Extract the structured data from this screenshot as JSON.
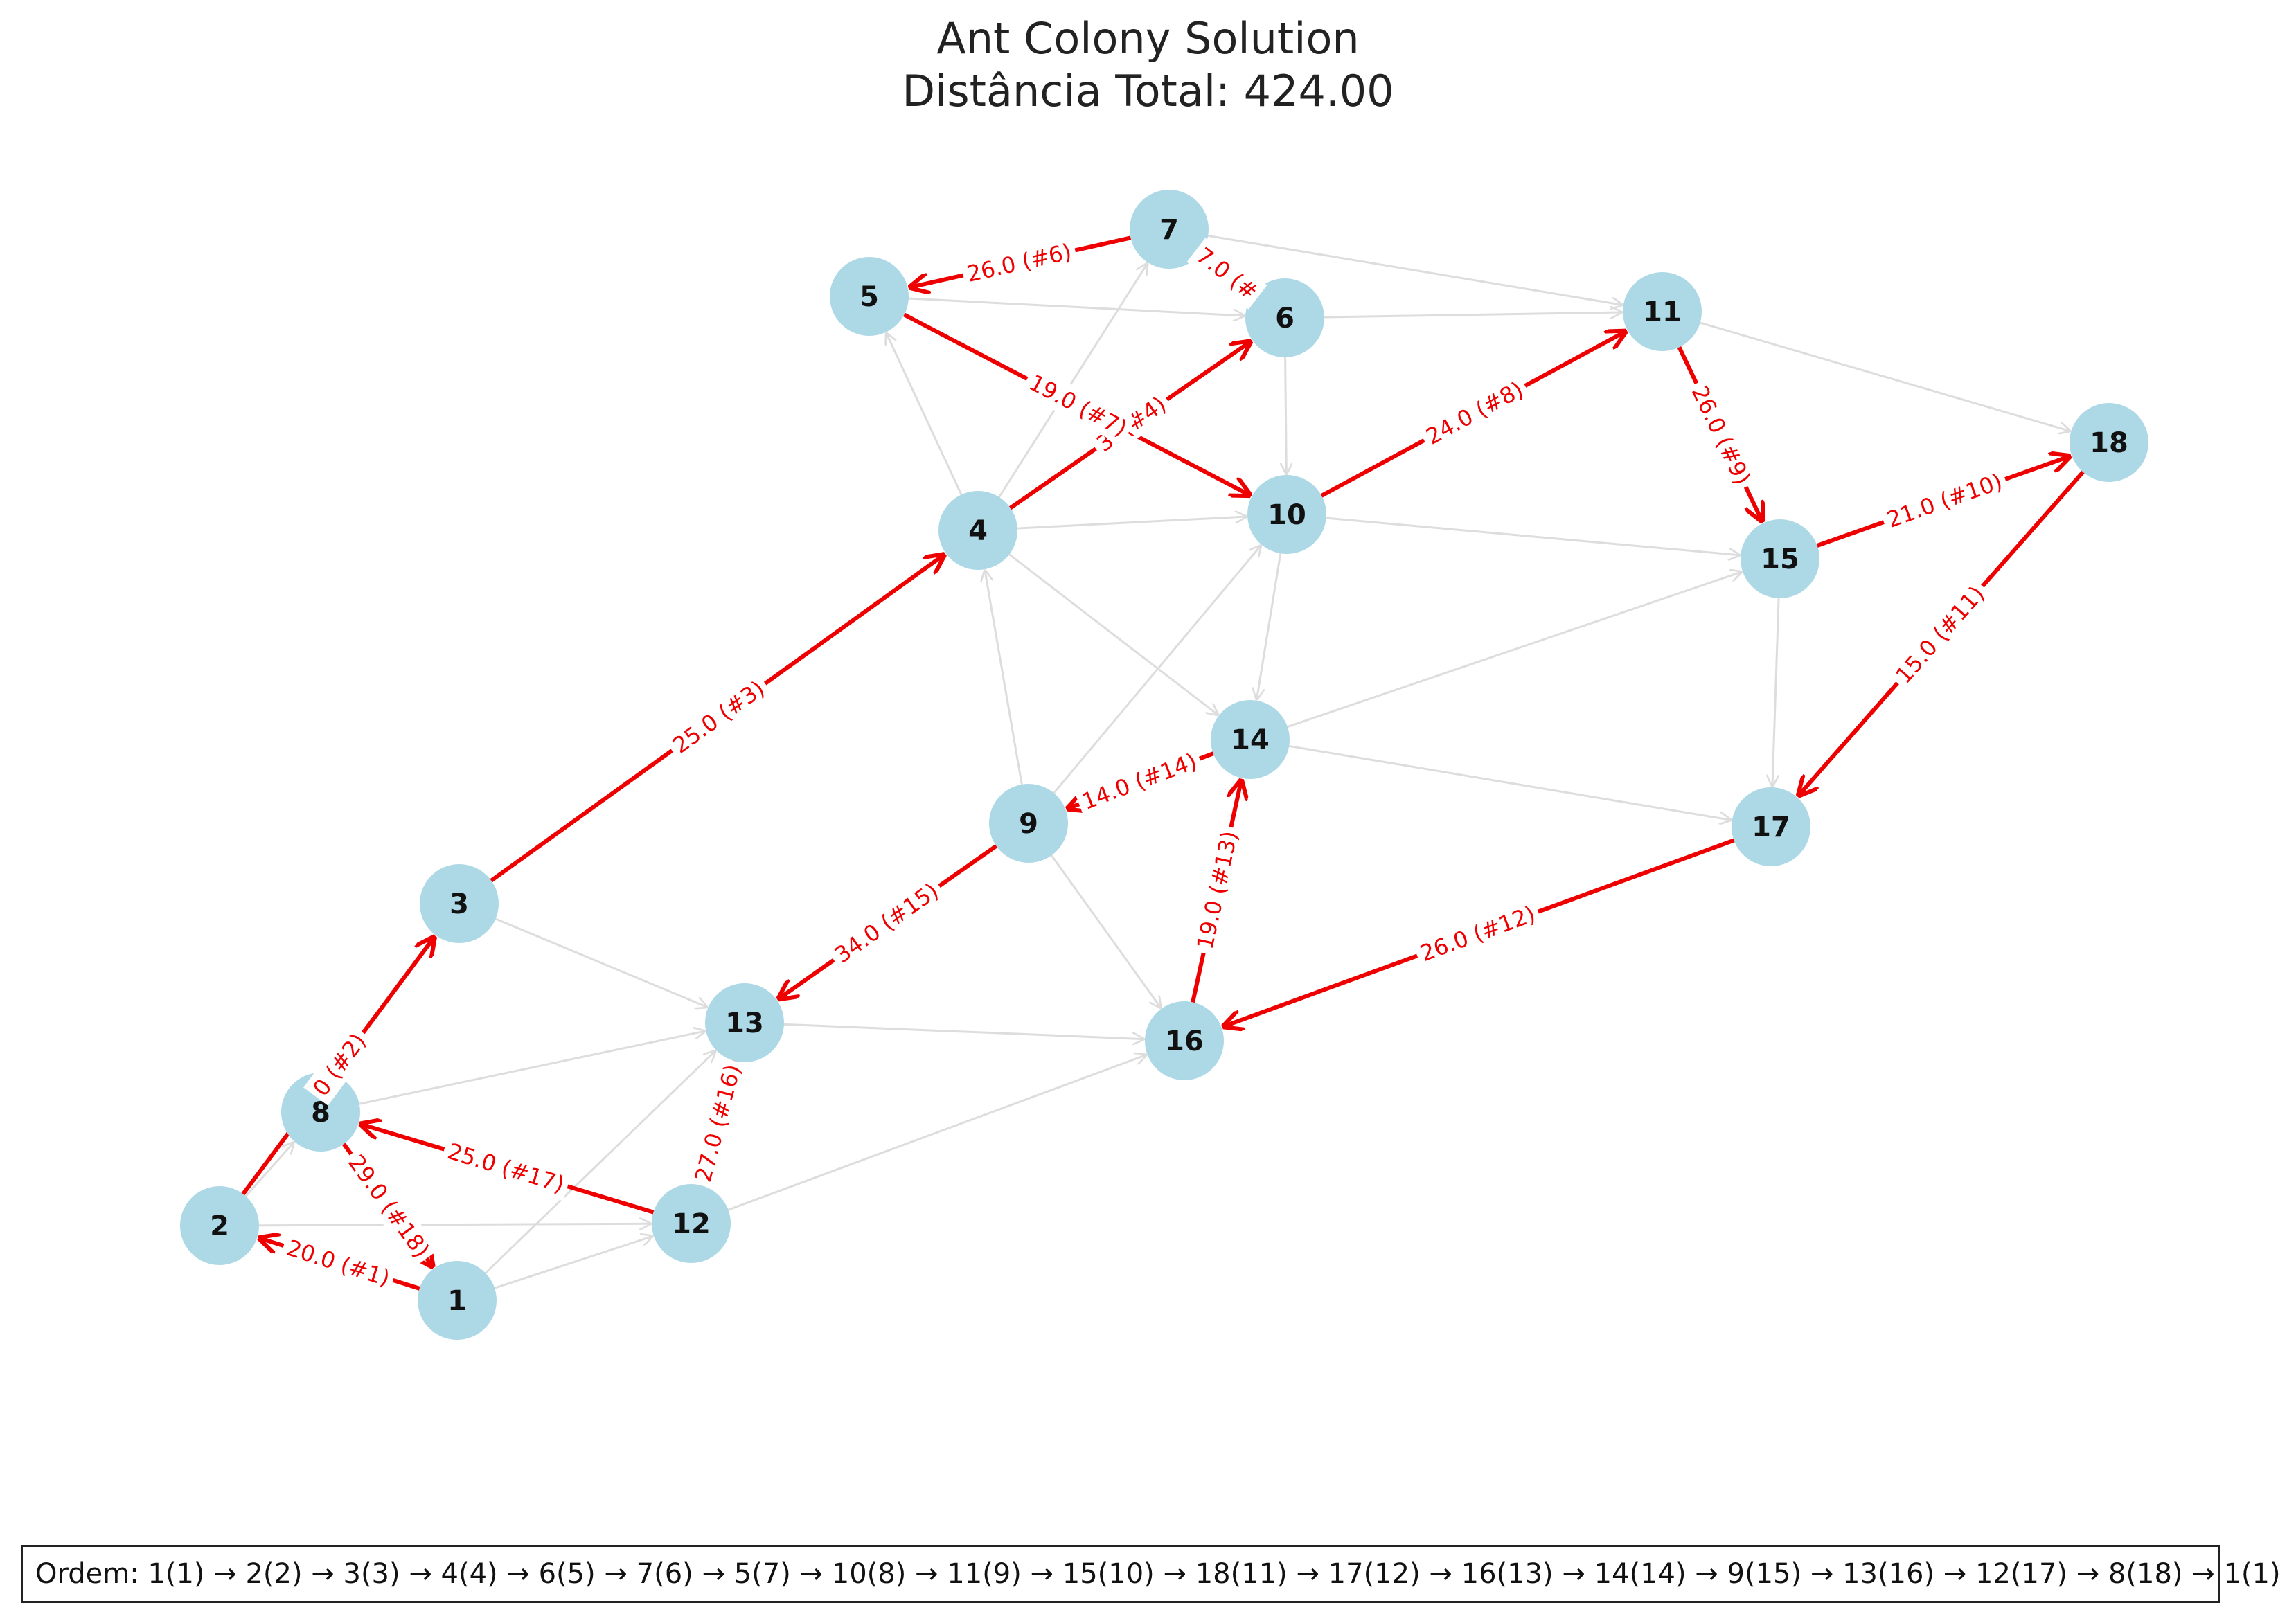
{
  "header": {
    "title": "Ant Colony Solution",
    "subtitle": "Distância Total: 424.00"
  },
  "order_text": "Ordem: 1(1) → 2(2) → 3(3) → 4(4) → 6(5) → 7(6) → 5(7) → 10(8) → 11(9) → 15(10) → 18(11) → 17(12) → 16(13) → 14(14) → 9(15) → 13(16) → 12(17) → 8(18) → 1(1)",
  "colors": {
    "node_fill": "#add8e6",
    "route_edge": "#ee0000",
    "base_edge": "#dddddd",
    "text": "#111111"
  },
  "nodes": [
    "1",
    "2",
    "3",
    "4",
    "5",
    "6",
    "7",
    "8",
    "9",
    "10",
    "11",
    "12",
    "13",
    "14",
    "15",
    "16",
    "17",
    "18"
  ],
  "route": [
    {
      "from": "1",
      "to": "2",
      "label": "20.0 (#1)"
    },
    {
      "from": "2",
      "to": "3",
      "label": "0 (#2)"
    },
    {
      "from": "3",
      "to": "4",
      "label": "25.0 (#3)"
    },
    {
      "from": "4",
      "to": "6",
      "label": "3. (#4)"
    },
    {
      "from": "6",
      "to": "7",
      "label": "7.0 (#"
    },
    {
      "from": "7",
      "to": "5",
      "label": "26.0 (#6)"
    },
    {
      "from": "5",
      "to": "10",
      "label": "19.0 (#7)"
    },
    {
      "from": "10",
      "to": "11",
      "label": "24.0 (#8)"
    },
    {
      "from": "11",
      "to": "15",
      "label": "26.0 (#9)"
    },
    {
      "from": "15",
      "to": "18",
      "label": "21.0 (#10)"
    },
    {
      "from": "18",
      "to": "17",
      "label": "15.0 (#11)"
    },
    {
      "from": "17",
      "to": "16",
      "label": "26.0 (#12)"
    },
    {
      "from": "16",
      "to": "14",
      "label": "19.0 (#13)"
    },
    {
      "from": "14",
      "to": "9",
      "label": "14.0 (#14)"
    },
    {
      "from": "9",
      "to": "13",
      "label": "34.0 (#15)"
    },
    {
      "from": "13",
      "to": "12",
      "label": "27.0 (#16)"
    },
    {
      "from": "12",
      "to": "8",
      "label": "25.0 (#17)"
    },
    {
      "from": "8",
      "to": "1",
      "label": "29.0 (#18)"
    }
  ],
  "other_edges": [
    [
      "1",
      "12"
    ],
    [
      "1",
      "13"
    ],
    [
      "2",
      "12"
    ],
    [
      "2",
      "8"
    ],
    [
      "8",
      "13"
    ],
    [
      "3",
      "13"
    ],
    [
      "12",
      "16"
    ],
    [
      "13",
      "16"
    ],
    [
      "9",
      "16"
    ],
    [
      "9",
      "10"
    ],
    [
      "9",
      "4"
    ],
    [
      "4",
      "14"
    ],
    [
      "4",
      "10"
    ],
    [
      "4",
      "5"
    ],
    [
      "4",
      "7"
    ],
    [
      "5",
      "6"
    ],
    [
      "6",
      "10"
    ],
    [
      "6",
      "11"
    ],
    [
      "7",
      "11"
    ],
    [
      "10",
      "15"
    ],
    [
      "10",
      "14"
    ],
    [
      "14",
      "15"
    ],
    [
      "14",
      "17"
    ],
    [
      "15",
      "17"
    ],
    [
      "11",
      "18"
    ],
    [
      "9",
      "13"
    ]
  ]
}
